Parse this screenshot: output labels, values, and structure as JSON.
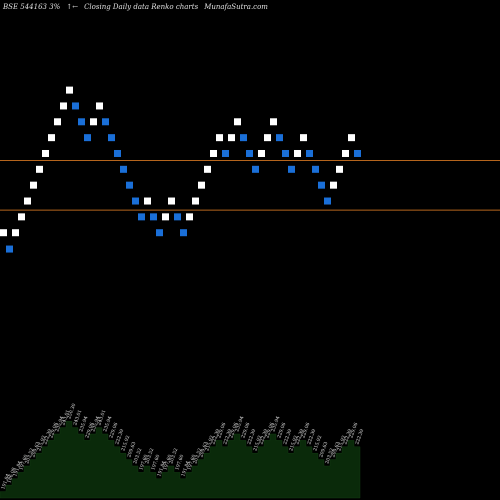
{
  "header": {
    "symbol": "BSE 544163 3%",
    "arrows": "↑←",
    "description": "Closing Daily data Renko charts",
    "site": "MunafaSutra.com"
  },
  "colors": {
    "background": "#000000",
    "up_brick": "#ffffff",
    "down_brick": "#1a6fd8",
    "line": "#b5651d",
    "volume": "#0a2a0a"
  },
  "chart_data": {
    "type": "renko",
    "bricks": [
      {
        "close": 191.84,
        "dir": "up"
      },
      {
        "close": 186.08,
        "dir": "down"
      },
      {
        "close": 191.84,
        "dir": "up"
      },
      {
        "close": 197.6,
        "dir": "up"
      },
      {
        "close": 203.52,
        "dir": "up"
      },
      {
        "close": 209.63,
        "dir": "up"
      },
      {
        "close": 215.92,
        "dir": "up"
      },
      {
        "close": 222.39,
        "dir": "up"
      },
      {
        "close": 229.06,
        "dir": "up"
      },
      {
        "close": 235.94,
        "dir": "up"
      },
      {
        "close": 243.01,
        "dir": "up"
      },
      {
        "close": 250.3,
        "dir": "up"
      },
      {
        "close": 243.01,
        "dir": "down"
      },
      {
        "close": 235.94,
        "dir": "down"
      },
      {
        "close": 229.06,
        "dir": "down"
      },
      {
        "close": 235.94,
        "dir": "up"
      },
      {
        "close": 243.01,
        "dir": "up"
      },
      {
        "close": 235.94,
        "dir": "down"
      },
      {
        "close": 229.06,
        "dir": "down"
      },
      {
        "close": 222.39,
        "dir": "down"
      },
      {
        "close": 215.92,
        "dir": "down"
      },
      {
        "close": 209.63,
        "dir": "down"
      },
      {
        "close": 203.52,
        "dir": "down"
      },
      {
        "close": 197.6,
        "dir": "down"
      },
      {
        "close": 203.52,
        "dir": "up"
      },
      {
        "close": 197.6,
        "dir": "down"
      },
      {
        "close": 191.84,
        "dir": "down"
      },
      {
        "close": 197.6,
        "dir": "up"
      },
      {
        "close": 203.52,
        "dir": "up"
      },
      {
        "close": 197.6,
        "dir": "down"
      },
      {
        "close": 191.84,
        "dir": "down"
      },
      {
        "close": 197.6,
        "dir": "up"
      },
      {
        "close": 203.52,
        "dir": "up"
      },
      {
        "close": 209.63,
        "dir": "up"
      },
      {
        "close": 215.92,
        "dir": "up"
      },
      {
        "close": 222.39,
        "dir": "up"
      },
      {
        "close": 229.06,
        "dir": "up"
      },
      {
        "close": 222.39,
        "dir": "down"
      },
      {
        "close": 229.06,
        "dir": "up"
      },
      {
        "close": 235.94,
        "dir": "up"
      },
      {
        "close": 229.06,
        "dir": "down"
      },
      {
        "close": 222.39,
        "dir": "down"
      },
      {
        "close": 215.92,
        "dir": "down"
      },
      {
        "close": 222.39,
        "dir": "up"
      },
      {
        "close": 229.06,
        "dir": "up"
      },
      {
        "close": 235.94,
        "dir": "up"
      },
      {
        "close": 229.06,
        "dir": "down"
      },
      {
        "close": 222.39,
        "dir": "down"
      },
      {
        "close": 215.92,
        "dir": "down"
      },
      {
        "close": 222.39,
        "dir": "up"
      },
      {
        "close": 229.06,
        "dir": "up"
      },
      {
        "close": 222.39,
        "dir": "down"
      },
      {
        "close": 215.92,
        "dir": "down"
      },
      {
        "close": 209.63,
        "dir": "down"
      },
      {
        "close": 203.52,
        "dir": "down"
      },
      {
        "close": 209.63,
        "dir": "up"
      },
      {
        "close": 215.92,
        "dir": "up"
      },
      {
        "close": 222.39,
        "dir": "up"
      },
      {
        "close": 229.06,
        "dir": "up"
      },
      {
        "close": 222.39,
        "dir": "down"
      }
    ],
    "reference_lines": [
      219.5,
      200.1
    ],
    "price_range": [
      160,
      280
    ],
    "volume_heights": [
      0.04,
      0.08,
      0.12,
      0.16,
      0.2,
      0.24,
      0.28,
      0.32,
      0.36,
      0.4,
      0.44,
      0.48,
      0.44,
      0.4,
      0.36,
      0.4,
      0.44,
      0.4,
      0.36,
      0.32,
      0.28,
      0.24,
      0.2,
      0.16,
      0.2,
      0.16,
      0.12,
      0.16,
      0.2,
      0.16,
      0.12,
      0.16,
      0.2,
      0.24,
      0.28,
      0.32,
      0.36,
      0.32,
      0.36,
      0.4,
      0.36,
      0.32,
      0.28,
      0.32,
      0.36,
      0.4,
      0.36,
      0.32,
      0.28,
      0.32,
      0.36,
      0.32,
      0.28,
      0.24,
      0.2,
      0.24,
      0.28,
      0.32,
      0.36,
      0.32
    ]
  }
}
